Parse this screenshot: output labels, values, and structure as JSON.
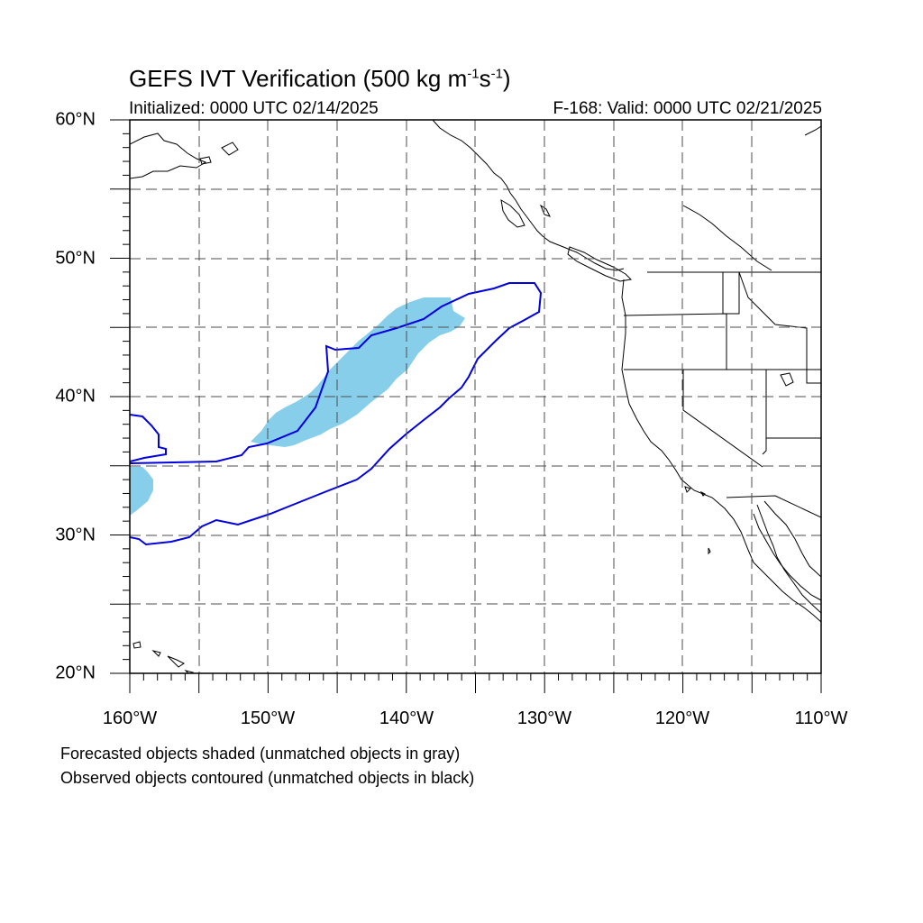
{
  "title": {
    "main": "GEFS IVT Verification (500 kg m",
    "unit_exp1": "-1",
    "unit_mid": "s",
    "unit_exp2": "-1",
    "close": ")"
  },
  "subtitle": {
    "initialized": "Initialized: 0000 UTC 02/14/2025",
    "valid": "F-168: Valid: 0000 UTC 02/21/2025"
  },
  "map": {
    "lon_range": [
      -160,
      -110
    ],
    "lat_range": [
      20,
      60
    ],
    "lat_ticks": [
      "20°N",
      "30°N",
      "40°N",
      "50°N",
      "60°N"
    ],
    "lon_ticks": [
      "160°W",
      "150°W",
      "140°W",
      "130°W",
      "120°W",
      "110°W"
    ],
    "grid": "dashed, every 5°",
    "colors": {
      "forecast_fill": "#87ceeb",
      "observed_contour": "#0000e0",
      "coastline": "#000000",
      "grid": "#4d4d4d"
    }
  },
  "footer": {
    "line1": "Forecasted objects shaded (unmatched objects in gray)",
    "line2": "Observed objects contoured (unmatched objects in black)"
  }
}
